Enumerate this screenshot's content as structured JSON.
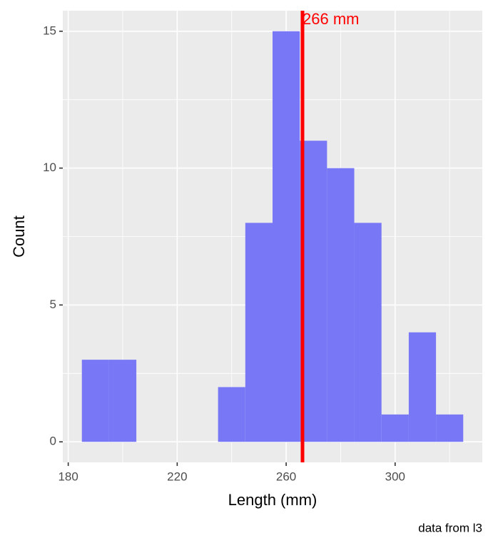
{
  "chart_data": {
    "type": "histogram",
    "x_label": "Length (mm)",
    "y_label": "Count",
    "caption": "data from l3",
    "bins": [
      185,
      195,
      205,
      215,
      225,
      235,
      245,
      255,
      265,
      275,
      285,
      295,
      305,
      315,
      325
    ],
    "counts": [
      3,
      3,
      0,
      0,
      0,
      2,
      8,
      15,
      11,
      10,
      8,
      1,
      4,
      1
    ],
    "color": "#7878f6",
    "xlim": [
      178,
      332
    ],
    "ylim": [
      -0.75,
      15.75
    ],
    "xticks": [
      180,
      220,
      260,
      300
    ],
    "yticks": [
      0,
      5,
      10,
      15
    ],
    "x_minor_grid": [
      200,
      240,
      280,
      320
    ],
    "y_minor_grid": [
      2.5,
      7.5,
      12.5
    ],
    "grid": true,
    "vline": {
      "value": 266,
      "label": "266 mm",
      "color": "#ff0000"
    }
  }
}
